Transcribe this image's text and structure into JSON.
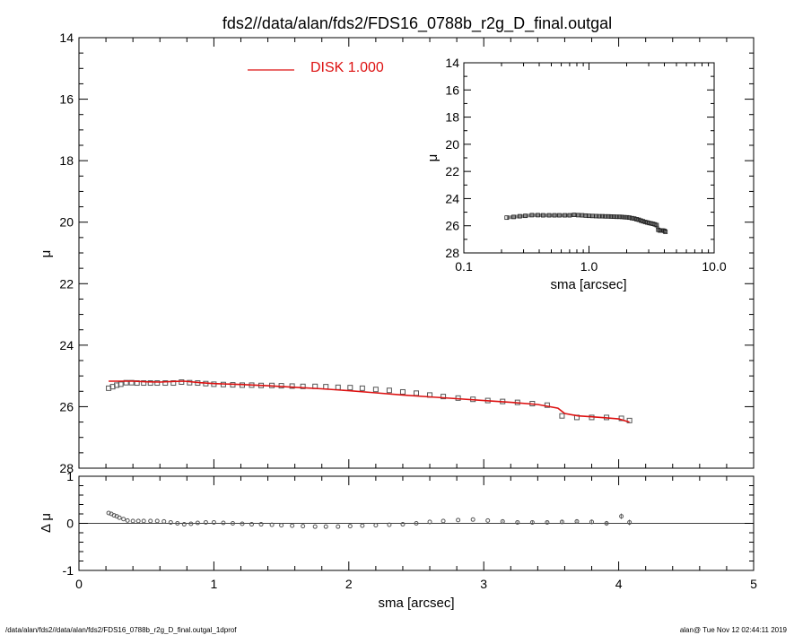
{
  "page": {
    "title": "fds2//data/alan/fds2/FDS16_0788b_r2g_D_final.outgal",
    "footer_left": "/data/alan/fds2//data/alan/fds2/FDS16_0788b_r2g_D_final.outgal_1dprof",
    "footer_right": "alan@  Tue Nov 12 02:44:11 2019"
  },
  "colors": {
    "model": "#dd1111",
    "data": "#555555",
    "axes": "#000000"
  },
  "chart_data": [
    {
      "id": "main",
      "type": "scatter",
      "ylabel": "μ",
      "xlim": [
        0,
        5
      ],
      "ylim": [
        28,
        14
      ],
      "y_inverted": true,
      "yticks": [
        14,
        16,
        18,
        20,
        22,
        24,
        26,
        28
      ],
      "legend": {
        "label": "DISK  1.000",
        "color": "#dd1111",
        "placement": "top-left"
      },
      "series": [
        {
          "kind": "data",
          "x": [
            0.22,
            0.25,
            0.28,
            0.31,
            0.35,
            0.39,
            0.43,
            0.48,
            0.53,
            0.58,
            0.64,
            0.7,
            0.76,
            0.82,
            0.88,
            0.94,
            1.0,
            1.07,
            1.14,
            1.21,
            1.28,
            1.35,
            1.43,
            1.5,
            1.58,
            1.66,
            1.75,
            1.83,
            1.92,
            2.01,
            2.1,
            2.2,
            2.3,
            2.4,
            2.5,
            2.6,
            2.7,
            2.81,
            2.92,
            3.03,
            3.14,
            3.25,
            3.36,
            3.47,
            3.58,
            3.69,
            3.8,
            3.91,
            4.02,
            4.08
          ],
          "y": [
            25.4,
            25.35,
            25.3,
            25.27,
            25.22,
            25.22,
            25.23,
            25.23,
            25.23,
            25.23,
            25.23,
            25.23,
            25.2,
            25.22,
            25.23,
            25.25,
            25.27,
            25.28,
            25.29,
            25.3,
            25.3,
            25.31,
            25.31,
            25.32,
            25.33,
            25.34,
            25.34,
            25.35,
            25.37,
            25.38,
            25.4,
            25.44,
            25.47,
            25.52,
            25.56,
            25.62,
            25.67,
            25.72,
            25.76,
            25.8,
            25.83,
            25.86,
            25.9,
            25.95,
            26.3,
            26.35,
            26.35,
            26.35,
            26.38,
            26.45
          ]
        },
        {
          "kind": "model",
          "name": "DISK  1.000",
          "x": [
            0.22,
            0.3,
            0.4,
            0.5,
            0.6,
            0.7,
            0.78,
            0.9,
            1.0,
            1.2,
            1.4,
            1.6,
            1.8,
            2.0,
            2.2,
            2.4,
            2.6,
            2.8,
            3.0,
            3.2,
            3.4,
            3.55,
            3.6,
            3.7,
            3.8,
            3.9,
            4.0,
            4.08
          ],
          "y": [
            25.17,
            25.17,
            25.17,
            25.19,
            25.2,
            25.18,
            25.17,
            25.22,
            25.25,
            25.28,
            25.32,
            25.37,
            25.42,
            25.48,
            25.55,
            25.62,
            25.68,
            25.74,
            25.8,
            25.86,
            25.93,
            26.05,
            26.22,
            26.3,
            26.33,
            26.36,
            26.4,
            26.5
          ]
        }
      ]
    },
    {
      "id": "residual",
      "type": "scatter",
      "xlabel": "sma [arcsec]",
      "ylabel": "Δ μ",
      "xlim": [
        0,
        5
      ],
      "ylim": [
        -1,
        1
      ],
      "xticks": [
        0,
        1,
        2,
        3,
        4,
        5
      ],
      "yticks": [
        -1,
        0,
        1
      ],
      "zero_line": true,
      "x": [
        0.22,
        0.24,
        0.26,
        0.28,
        0.3,
        0.33,
        0.36,
        0.4,
        0.44,
        0.48,
        0.53,
        0.58,
        0.63,
        0.68,
        0.73,
        0.78,
        0.83,
        0.88,
        0.94,
        1.0,
        1.07,
        1.14,
        1.21,
        1.28,
        1.35,
        1.43,
        1.5,
        1.58,
        1.66,
        1.75,
        1.83,
        1.92,
        2.01,
        2.1,
        2.2,
        2.3,
        2.4,
        2.5,
        2.6,
        2.7,
        2.81,
        2.92,
        3.03,
        3.14,
        3.25,
        3.36,
        3.47,
        3.58,
        3.69,
        3.8,
        3.91,
        4.02,
        4.08
      ],
      "y": [
        0.22,
        0.2,
        0.17,
        0.15,
        0.12,
        0.09,
        0.06,
        0.05,
        0.05,
        0.05,
        0.05,
        0.05,
        0.04,
        0.02,
        0.0,
        -0.02,
        -0.01,
        0.01,
        0.02,
        0.02,
        0.01,
        0.0,
        -0.01,
        -0.02,
        -0.02,
        -0.03,
        -0.04,
        -0.05,
        -0.06,
        -0.07,
        -0.07,
        -0.07,
        -0.06,
        -0.05,
        -0.04,
        -0.03,
        -0.02,
        0.0,
        0.03,
        0.05,
        0.07,
        0.08,
        0.06,
        0.04,
        0.02,
        0.02,
        0.02,
        0.03,
        0.04,
        0.03,
        0.0,
        0.15,
        0.02
      ],
      "err": [
        0.01,
        0.01,
        0.01,
        0.01,
        0.01,
        0.01,
        0.01,
        0.01,
        0.01,
        0.01,
        0.01,
        0.01,
        0.01,
        0.01,
        0.01,
        0.01,
        0.01,
        0.01,
        0.01,
        0.01,
        0.01,
        0.01,
        0.01,
        0.01,
        0.01,
        0.01,
        0.01,
        0.01,
        0.01,
        0.01,
        0.01,
        0.01,
        0.01,
        0.01,
        0.01,
        0.01,
        0.01,
        0.01,
        0.01,
        0.01,
        0.01,
        0.01,
        0.01,
        0.02,
        0.02,
        0.03,
        0.03,
        0.04,
        0.04,
        0.05,
        0.05,
        0.06,
        0.06
      ]
    },
    {
      "id": "inset",
      "type": "scatter",
      "xlabel": "sma [arcsec]",
      "ylabel": "μ",
      "x_log": true,
      "xlim": [
        0.1,
        10
      ],
      "ylim": [
        28,
        14
      ],
      "y_inverted": true,
      "xtick_labels": [
        "0.1",
        "1.0",
        "10.0"
      ],
      "xticks": [
        0.1,
        1,
        10
      ],
      "yticks": [
        14,
        16,
        18,
        20,
        22,
        24,
        26,
        28
      ],
      "x": [
        0.22,
        0.25,
        0.28,
        0.31,
        0.35,
        0.39,
        0.43,
        0.48,
        0.53,
        0.58,
        0.64,
        0.7,
        0.76,
        0.82,
        0.88,
        0.94,
        1.0,
        1.07,
        1.14,
        1.21,
        1.28,
        1.35,
        1.43,
        1.5,
        1.58,
        1.66,
        1.75,
        1.83,
        1.92,
        2.01,
        2.1,
        2.2,
        2.3,
        2.4,
        2.5,
        2.6,
        2.7,
        2.81,
        2.92,
        3.03,
        3.14,
        3.25,
        3.36,
        3.47,
        3.58,
        3.69,
        3.8,
        3.91,
        4.02,
        4.08
      ],
      "y": [
        25.4,
        25.35,
        25.3,
        25.27,
        25.22,
        25.22,
        25.23,
        25.23,
        25.23,
        25.23,
        25.23,
        25.23,
        25.2,
        25.22,
        25.23,
        25.25,
        25.27,
        25.28,
        25.29,
        25.3,
        25.3,
        25.31,
        25.31,
        25.32,
        25.33,
        25.34,
        25.34,
        25.35,
        25.37,
        25.38,
        25.4,
        25.44,
        25.47,
        25.52,
        25.56,
        25.62,
        25.67,
        25.72,
        25.76,
        25.8,
        25.83,
        25.86,
        25.9,
        25.95,
        26.3,
        26.35,
        26.35,
        26.35,
        26.38,
        26.45
      ]
    }
  ]
}
